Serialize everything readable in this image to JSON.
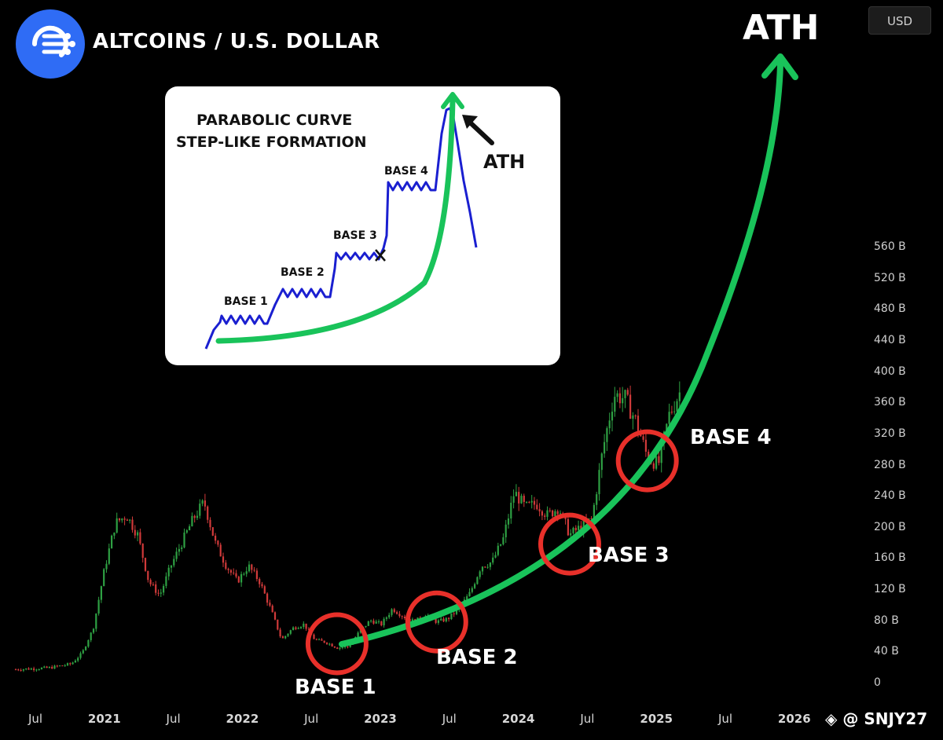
{
  "header": {
    "pair_title": "ALTCOINS / U.S. DOLLAR",
    "currency": "USD"
  },
  "icons": {
    "logo": "altcoin-logo-icon",
    "watermark": "binance-diamond-icon"
  },
  "colors": {
    "background": "#000000",
    "up_candle": "#2ea043",
    "down_candle": "#d03a3a",
    "curve": "#19c35a",
    "base_circle": "#e8302a",
    "inset_line": "#1a1fd0"
  },
  "chart_data": {
    "type": "candlestick",
    "xlabel": "",
    "ylabel": "",
    "y_unit": "USD",
    "y_ticks": [
      "560 B",
      "520 B",
      "480 B",
      "440 B",
      "400 B",
      "360 B",
      "320 B",
      "280 B",
      "240 B",
      "200 B",
      "160 B",
      "120 B",
      "80 B",
      "40 B",
      "0"
    ],
    "ylim": [
      0,
      560
    ],
    "x_ticks": [
      "Jul",
      "2021",
      "Jul",
      "2022",
      "Jul",
      "2023",
      "Jul",
      "2024",
      "Jul",
      "2025",
      "Jul",
      "2026"
    ],
    "xlim": [
      "2020-06",
      "2026-02"
    ],
    "close_path": [
      [
        "2020-06",
        17
      ],
      [
        "2020-09",
        19
      ],
      [
        "2020-11",
        24
      ],
      [
        "2020-12",
        38
      ],
      [
        "2021-01",
        70
      ],
      [
        "2021-02",
        145
      ],
      [
        "2021-03",
        205
      ],
      [
        "2021-04",
        215
      ],
      [
        "2021-05",
        190
      ],
      [
        "2021-06",
        130
      ],
      [
        "2021-07",
        112
      ],
      [
        "2021-08",
        150
      ],
      [
        "2021-09",
        180
      ],
      [
        "2021-10",
        210
      ],
      [
        "2021-11",
        232
      ],
      [
        "2021-12",
        180
      ],
      [
        "2022-01",
        150
      ],
      [
        "2022-02",
        130
      ],
      [
        "2022-03",
        150
      ],
      [
        "2022-04",
        130
      ],
      [
        "2022-05",
        95
      ],
      [
        "2022-06",
        55
      ],
      [
        "2022-07",
        70
      ],
      [
        "2022-08",
        75
      ],
      [
        "2022-09",
        55
      ],
      [
        "2022-10",
        52
      ],
      [
        "2022-11",
        45
      ],
      [
        "2022-12",
        46
      ],
      [
        "2023-01",
        65
      ],
      [
        "2023-02",
        80
      ],
      [
        "2023-03",
        75
      ],
      [
        "2023-04",
        95
      ],
      [
        "2023-05",
        85
      ],
      [
        "2023-06",
        78
      ],
      [
        "2023-07",
        88
      ],
      [
        "2023-08",
        78
      ],
      [
        "2023-09",
        82
      ],
      [
        "2023-10",
        95
      ],
      [
        "2023-11",
        115
      ],
      [
        "2023-12",
        150
      ],
      [
        "2024-01",
        155
      ],
      [
        "2024-02",
        185
      ],
      [
        "2024-03",
        245
      ],
      [
        "2024-04",
        225
      ],
      [
        "2024-05",
        230
      ],
      [
        "2024-06",
        215
      ],
      [
        "2024-07",
        225
      ],
      [
        "2024-08",
        190
      ],
      [
        "2024-09",
        200
      ],
      [
        "2024-10",
        210
      ],
      [
        "2024-11",
        300
      ],
      [
        "2024-12",
        370
      ],
      [
        "2025-01",
        365
      ],
      [
        "2025-02",
        335
      ],
      [
        "2025-03",
        290
      ],
      [
        "2025-04",
        280
      ],
      [
        "2025-05",
        345
      ],
      [
        "2025-06",
        375
      ]
    ],
    "annotations": {
      "top_label": "ATH",
      "bases": [
        {
          "label": "BASE 1",
          "date": "2022-11",
          "value": 50
        },
        {
          "label": "BASE 2",
          "date": "2023-08",
          "value": 78
        },
        {
          "label": "BASE 3",
          "date": "2024-08",
          "value": 178
        },
        {
          "label": "BASE 4",
          "date": "2025-03",
          "value": 285
        }
      ]
    }
  },
  "inset": {
    "title_line1": "PARABOLIC CURVE",
    "title_line2": "STEP-LIKE FORMATION",
    "ath_label": "ATH",
    "base_labels": [
      "BASE 1",
      "BASE 2",
      "BASE 3",
      "BASE 4"
    ]
  },
  "watermark": {
    "handle": "@ SNJY27"
  }
}
